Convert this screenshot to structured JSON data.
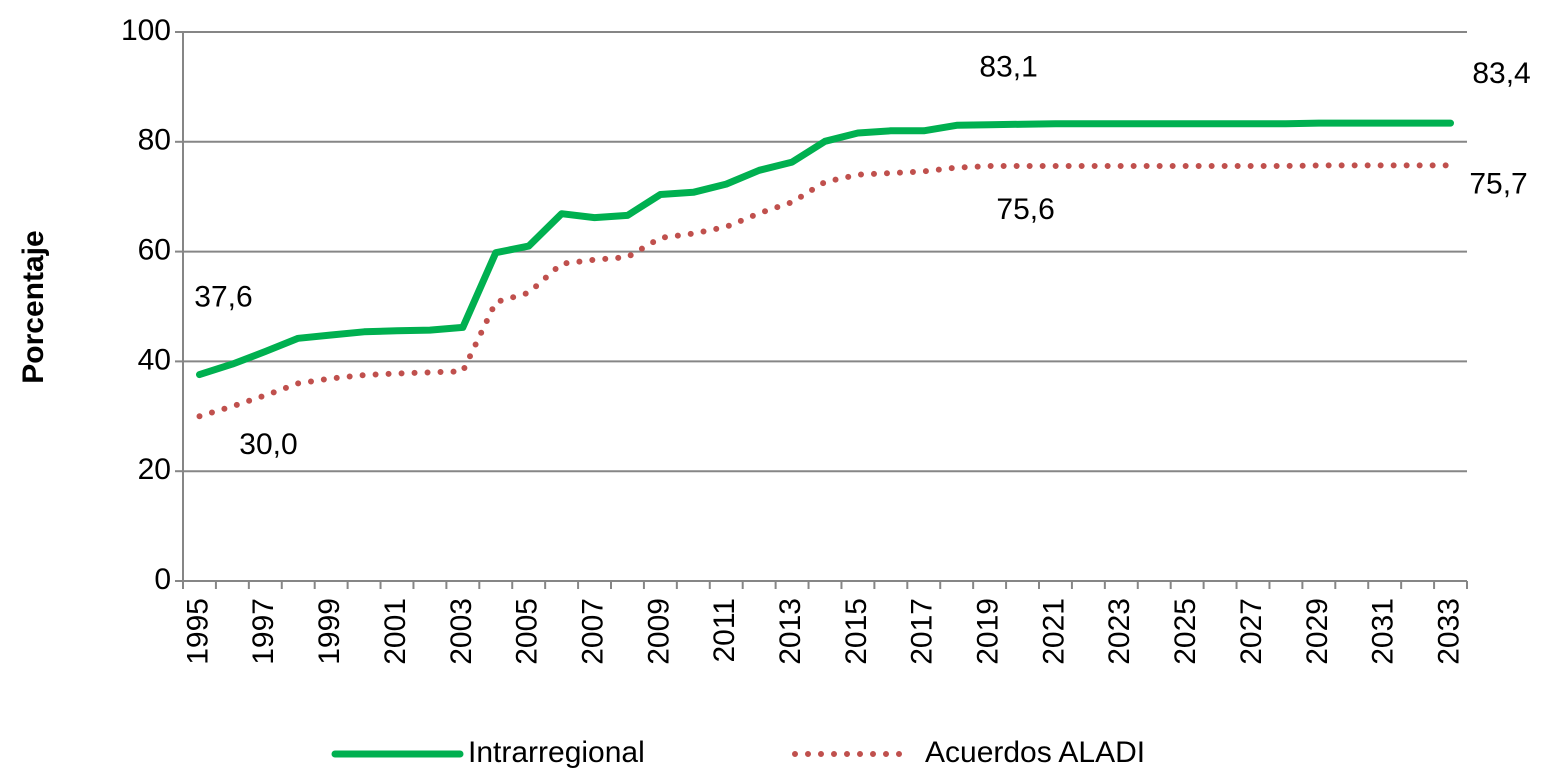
{
  "chart_data": {
    "type": "line",
    "y_label": "Porcentaje",
    "categories": [
      "1995",
      null,
      "1997",
      null,
      "1999",
      null,
      "2001",
      null,
      "2003",
      null,
      "2005",
      null,
      "2007",
      null,
      "2009",
      null,
      "2011",
      null,
      "2013",
      null,
      "2015",
      null,
      "2017",
      null,
      "2019",
      null,
      "2021",
      null,
      "2023",
      null,
      "2025",
      null,
      "2027",
      null,
      "2029",
      null,
      "2031",
      null,
      "2033"
    ],
    "series": [
      {
        "name": "Intrarregional",
        "color": "#00b050",
        "style": "solid",
        "values": [
          37.6,
          39.5,
          41.8,
          44.2,
          44.8,
          45.4,
          45.6,
          45.7,
          46.2,
          59.8,
          61.0,
          66.9,
          66.2,
          66.6,
          70.4,
          70.8,
          72.3,
          74.8,
          76.3,
          80.1,
          81.6,
          82.0,
          82.0,
          83.0,
          83.1,
          83.2,
          83.3,
          83.3,
          83.3,
          83.3,
          83.3,
          83.3,
          83.3,
          83.3,
          83.4,
          83.4,
          83.4,
          83.4,
          83.4
        ],
        "value_labels": [
          "37,6",
          null,
          null,
          null,
          null,
          null,
          null,
          null,
          null,
          null,
          null,
          null,
          null,
          null,
          null,
          null,
          null,
          null,
          null,
          null,
          null,
          null,
          null,
          null,
          "83,1",
          null,
          null,
          null,
          null,
          null,
          null,
          null,
          null,
          null,
          null,
          null,
          null,
          null,
          "83,4"
        ]
      },
      {
        "name": "Acuerdos ALADI",
        "color": "#c0504d",
        "style": "dotted",
        "values": [
          30.0,
          31.8,
          33.8,
          36.0,
          36.9,
          37.5,
          37.8,
          38.0,
          38.2,
          50.8,
          52.5,
          57.8,
          58.5,
          59.0,
          62.5,
          63.3,
          64.5,
          67.0,
          69.0,
          72.7,
          74.0,
          74.3,
          74.6,
          75.3,
          75.6,
          75.6,
          75.6,
          75.6,
          75.6,
          75.6,
          75.6,
          75.6,
          75.6,
          75.6,
          75.7,
          75.7,
          75.7,
          75.7,
          75.7
        ],
        "value_labels": [
          "30,0",
          null,
          null,
          null,
          null,
          null,
          null,
          null,
          null,
          null,
          null,
          null,
          null,
          null,
          null,
          null,
          null,
          null,
          null,
          null,
          null,
          null,
          null,
          null,
          "75,6",
          null,
          null,
          null,
          null,
          null,
          null,
          null,
          null,
          null,
          null,
          null,
          null,
          null,
          "75,7"
        ]
      }
    ],
    "ylim": [
      0,
      100
    ],
    "yticks": [
      0,
      20,
      40,
      60,
      80,
      100
    ],
    "grid": true,
    "legend": "bottom"
  }
}
